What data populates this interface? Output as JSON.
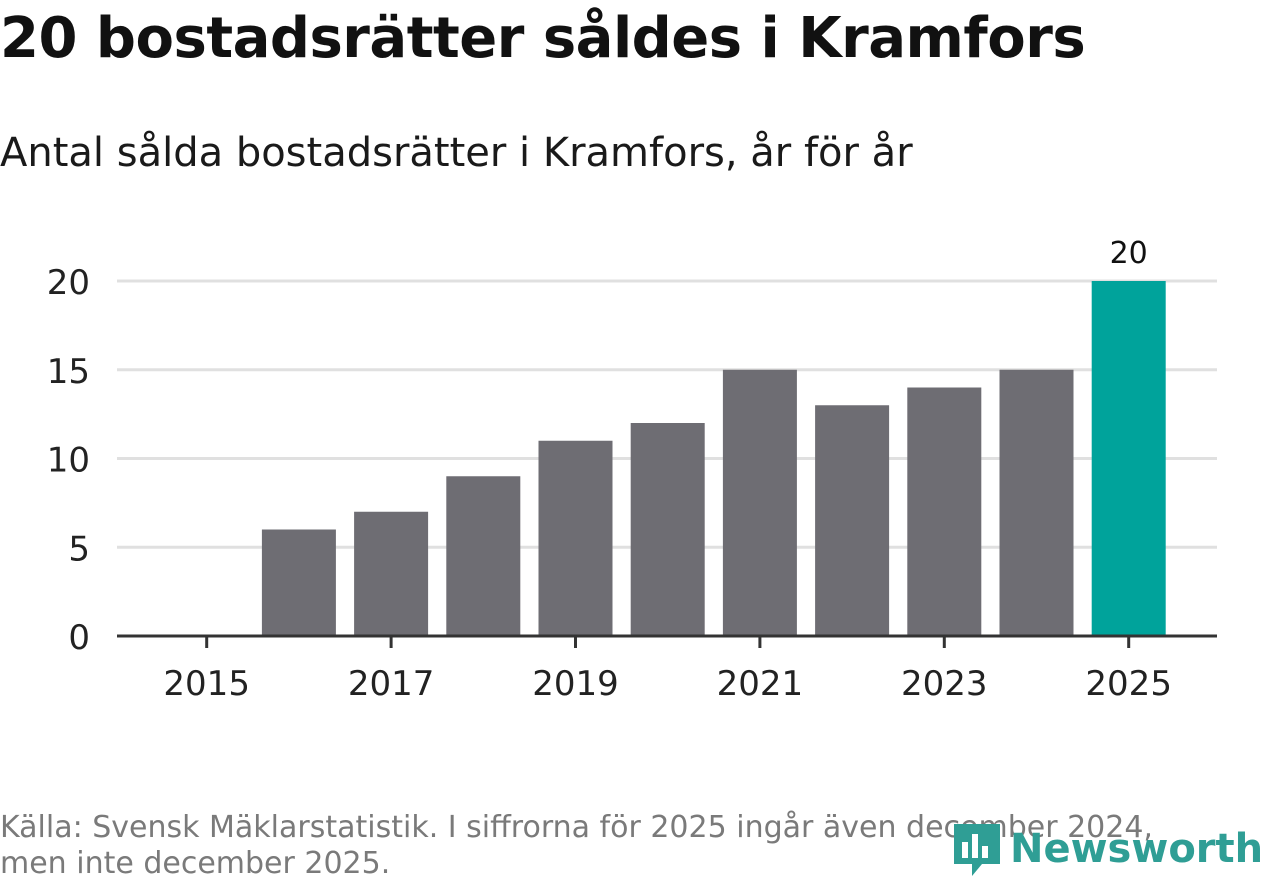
{
  "title": "20 bostadsrätter såldes i Kramfors",
  "subtitle": "Antal sålda bostadsrätter i Kramfors, år för år",
  "source": "Källa: Svensk Mäklarstatistik. I siffrorna för 2025 ingår även december 2024, men inte december 2025.",
  "logo": {
    "text": "Newsworthy"
  },
  "colors": {
    "bar": "#6e6d73",
    "highlight": "#00a39b",
    "grid": "#e0e0e0",
    "axis": "#333333",
    "logo": "#2f9e95"
  },
  "chart_data": {
    "type": "bar",
    "categories": [
      "2015",
      "2016",
      "2017",
      "2018",
      "2019",
      "2020",
      "2021",
      "2022",
      "2023",
      "2024",
      "2025"
    ],
    "values": [
      0,
      6,
      7,
      9,
      11,
      12,
      15,
      13,
      14,
      15,
      20
    ],
    "x_tick_labels": [
      "2015",
      "2017",
      "2019",
      "2021",
      "2023",
      "2025"
    ],
    "y_ticks": [
      0,
      5,
      10,
      15,
      20
    ],
    "ylim": [
      0,
      20
    ],
    "highlight_category": "2025",
    "data_labels": [
      {
        "category": "2025",
        "text": "20"
      }
    ],
    "title": "20 bostadsrätter såldes i Kramfors",
    "xlabel": "",
    "ylabel": "",
    "grid": true
  }
}
